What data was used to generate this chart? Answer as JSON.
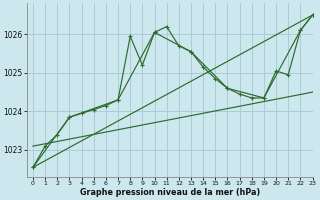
{
  "title": "Graphe pression niveau de la mer (hPa)",
  "bg_color": "#cce8ee",
  "grid_color": "#aaccd4",
  "line_color": "#2d6a2d",
  "xlim": [
    -0.5,
    23
  ],
  "ylim": [
    1022.3,
    1026.8
  ],
  "yticks": [
    1023,
    1024,
    1025,
    1026
  ],
  "xticks": [
    0,
    1,
    2,
    3,
    4,
    5,
    6,
    7,
    8,
    9,
    10,
    11,
    12,
    13,
    14,
    15,
    16,
    17,
    18,
    19,
    20,
    21,
    22,
    23
  ],
  "line1_x": [
    0,
    1,
    2,
    3,
    4,
    5,
    6,
    7,
    8,
    9,
    10,
    11,
    12,
    13,
    14,
    15,
    16,
    17,
    18,
    19,
    20,
    21,
    22,
    23
  ],
  "line1_y": [
    1022.55,
    1023.1,
    1023.4,
    1023.85,
    1023.95,
    1024.05,
    1024.15,
    1024.3,
    1025.95,
    1025.2,
    1026.05,
    1026.2,
    1025.7,
    1025.55,
    1025.15,
    1024.85,
    1024.6,
    1024.45,
    1024.35,
    1024.35,
    1025.05,
    1024.95,
    1026.1,
    1026.5
  ],
  "line2_x": [
    0,
    3,
    7,
    10,
    13,
    16,
    19,
    22,
    23
  ],
  "line2_y": [
    1022.55,
    1023.85,
    1024.3,
    1026.05,
    1025.55,
    1024.6,
    1024.35,
    1026.1,
    1026.5
  ],
  "line3_x": [
    0,
    23
  ],
  "line3_y": [
    1022.55,
    1026.5
  ],
  "line4_x": [
    0,
    23
  ],
  "line4_y": [
    1023.1,
    1024.5
  ]
}
